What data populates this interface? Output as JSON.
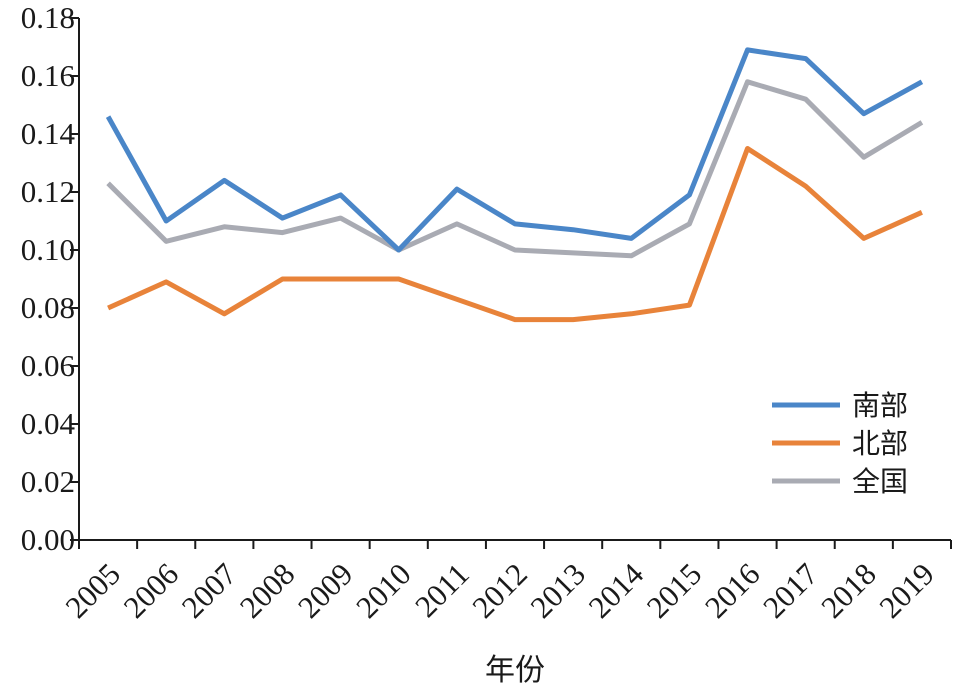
{
  "chart_data": {
    "type": "line",
    "title": "",
    "xlabel": "年份",
    "ylabel": "",
    "x": [
      "2005",
      "2006",
      "2007",
      "2008",
      "2009",
      "2010",
      "2011",
      "2012",
      "2013",
      "2014",
      "2015",
      "2016",
      "2017",
      "2018",
      "2019"
    ],
    "ylim": [
      0,
      0.18
    ],
    "yticks": [
      "0.00",
      "0.02",
      "0.04",
      "0.06",
      "0.08",
      "0.10",
      "0.12",
      "0.14",
      "0.16",
      "0.18"
    ],
    "grid": false,
    "legend": "bottom-right",
    "series": [
      {
        "name": "南部",
        "color": "#4a86c8",
        "values": [
          0.146,
          0.11,
          0.124,
          0.111,
          0.119,
          0.1,
          0.121,
          0.109,
          0.107,
          0.104,
          0.119,
          0.169,
          0.166,
          0.147,
          0.158
        ]
      },
      {
        "name": "北部",
        "color": "#e8833a",
        "values": [
          0.08,
          0.089,
          0.078,
          0.09,
          0.09,
          0.09,
          0.083,
          0.076,
          0.076,
          0.078,
          0.081,
          0.135,
          0.122,
          0.104,
          0.113
        ]
      },
      {
        "name": "全国",
        "color": "#a9abb3",
        "values": [
          0.123,
          0.103,
          0.108,
          0.106,
          0.111,
          0.1,
          0.109,
          0.1,
          0.099,
          0.098,
          0.109,
          0.158,
          0.152,
          0.132,
          0.144
        ]
      }
    ]
  }
}
